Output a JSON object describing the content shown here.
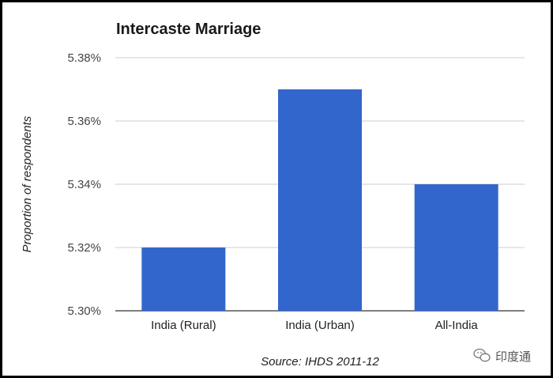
{
  "chart_data": {
    "type": "bar",
    "title": "Intercaste Marriage",
    "ylabel": "Proportion of respondents",
    "xlabel": "",
    "categories": [
      "India (Rural)",
      "India (Urban)",
      "All-India"
    ],
    "values": [
      5.32,
      5.37,
      5.34
    ],
    "unit": "%",
    "ylim": [
      5.3,
      5.38
    ],
    "yticks": [
      5.3,
      5.32,
      5.34,
      5.36,
      5.38
    ],
    "ytick_labels": [
      "5.30%",
      "5.32%",
      "5.34%",
      "5.36%",
      "5.38%"
    ],
    "grid": true,
    "bar_color": "#3366cc",
    "source": "Source: IHDS 2011-12"
  },
  "watermark": {
    "text": "印度通",
    "icon": "wechat-icon"
  }
}
